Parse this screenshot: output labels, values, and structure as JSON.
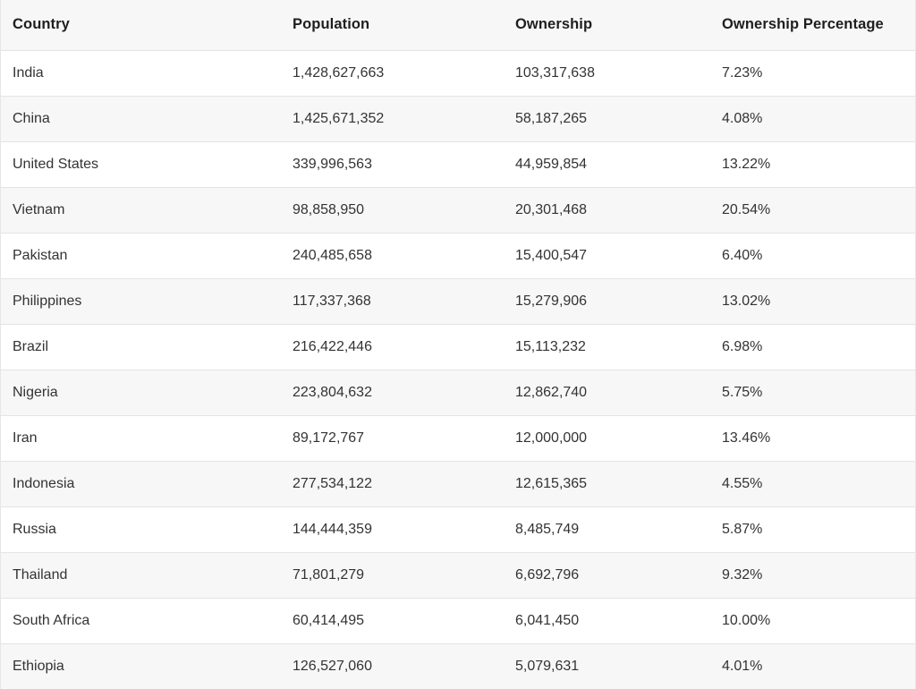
{
  "table": {
    "headers": [
      "Country",
      "Population",
      "Ownership",
      "Ownership Percentage"
    ],
    "rows": [
      [
        "India",
        "1,428,627,663",
        "103,317,638",
        "7.23%"
      ],
      [
        "China",
        "1,425,671,352",
        "58,187,265",
        "4.08%"
      ],
      [
        "United States",
        "339,996,563",
        "44,959,854",
        "13.22%"
      ],
      [
        "Vietnam",
        "98,858,950",
        "20,301,468",
        "20.54%"
      ],
      [
        "Pakistan",
        "240,485,658",
        "15,400,547",
        "6.40%"
      ],
      [
        "Philippines",
        "117,337,368",
        "15,279,906",
        "13.02%"
      ],
      [
        "Brazil",
        "216,422,446",
        "15,113,232",
        "6.98%"
      ],
      [
        "Nigeria",
        "223,804,632",
        "12,862,740",
        "5.75%"
      ],
      [
        "Iran",
        "89,172,767",
        "12,000,000",
        "13.46%"
      ],
      [
        "Indonesia",
        "277,534,122",
        "12,615,365",
        "4.55%"
      ],
      [
        "Russia",
        "144,444,359",
        "8,485,749",
        "5.87%"
      ],
      [
        "Thailand",
        "71,801,279",
        "6,692,796",
        "9.32%"
      ],
      [
        "South Africa",
        "60,414,495",
        "6,041,450",
        "10.00%"
      ],
      [
        "Ethiopia",
        "126,527,060",
        "5,079,631",
        "4.01%"
      ]
    ]
  }
}
